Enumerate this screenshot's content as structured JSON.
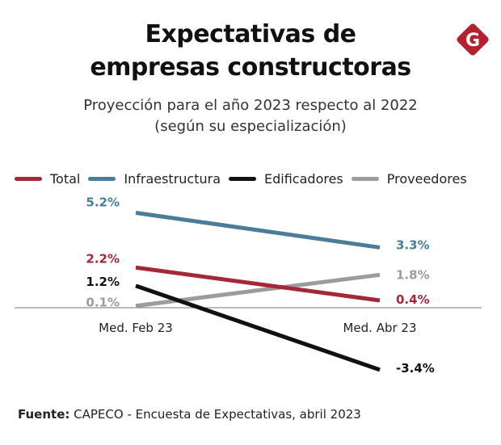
{
  "header": {
    "title_line1": "Expectativas de",
    "title_line2": "empresas constructoras",
    "subtitle_line1": "Proyección para el año 2023 respecto al 2022",
    "subtitle_line2": "(según su especialización)"
  },
  "logo": {
    "letter": "G",
    "color": "#b3202f"
  },
  "footer": {
    "source_label": "Fuente:",
    "source_text": "CAPECO - Encuesta de Expectativas, abril 2023"
  },
  "chart_data": {
    "type": "line",
    "categories": [
      "Med. Feb 23",
      "Med. Abr 23"
    ],
    "series": [
      {
        "name": "Total",
        "values": [
          2.2,
          0.4
        ],
        "labels": [
          "2.2%",
          "0.4%"
        ],
        "color": "#a3283a"
      },
      {
        "name": "Infraestructura",
        "values": [
          5.2,
          3.3
        ],
        "labels": [
          "5.2%",
          "3.3%"
        ],
        "color": "#4a7d99"
      },
      {
        "name": "Edificadores",
        "values": [
          1.2,
          -3.4
        ],
        "labels": [
          "1.2%",
          "-3.4%"
        ],
        "color": "#111111"
      },
      {
        "name": "Proveedores",
        "values": [
          0.1,
          1.8
        ],
        "labels": [
          "0.1%",
          "1.8%"
        ],
        "color": "#9c9c9c"
      }
    ],
    "ylim": [
      -4,
      6
    ],
    "grid": false,
    "legend_position": "top"
  }
}
